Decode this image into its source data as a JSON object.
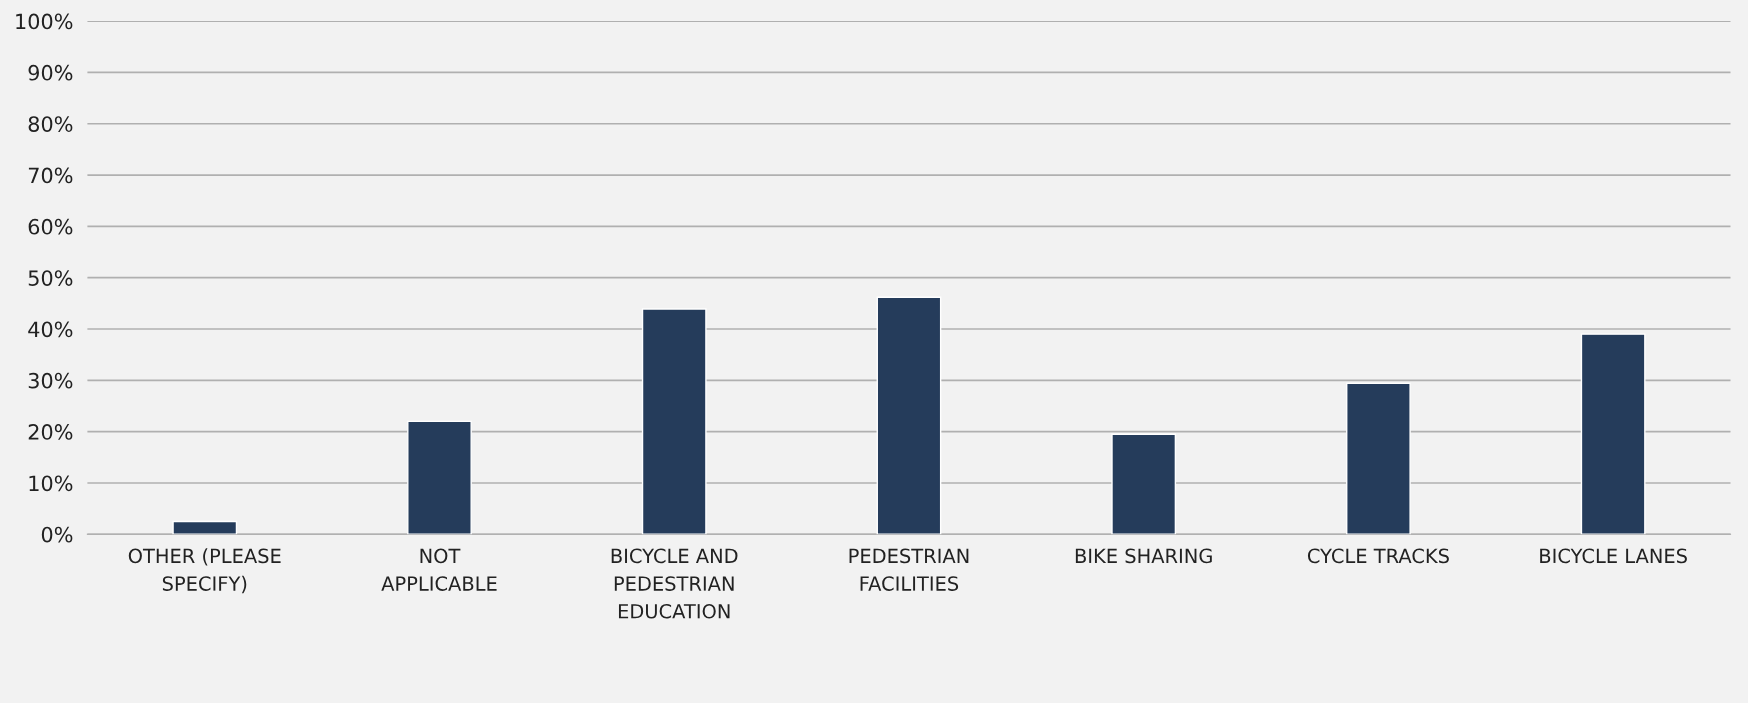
{
  "chart_data": {
    "type": "bar",
    "categories": [
      "OTHER (PLEASE\nSPECIFY)",
      "NOT\nAPPLICABLE",
      "BICYCLE AND\nPEDESTRIAN\nEDUCATION",
      "PEDESTRIAN\nFACILITIES",
      "BIKE SHARING",
      "CYCLE TRACKS",
      "BICYCLE LANES"
    ],
    "values": [
      2.5,
      22.0,
      43.9,
      46.2,
      19.5,
      29.4,
      39.0
    ],
    "color": "#253c5b",
    "ylim": [
      0,
      100
    ],
    "yticks": [
      {
        "value": 0,
        "label": "0%"
      },
      {
        "value": 10,
        "label": "10%"
      },
      {
        "value": 20,
        "label": "20%"
      },
      {
        "value": 30,
        "label": "30%"
      },
      {
        "value": 40,
        "label": "40%"
      },
      {
        "value": 50,
        "label": "50%"
      },
      {
        "value": 60,
        "label": "60%"
      },
      {
        "value": 70,
        "label": "70%"
      },
      {
        "value": 80,
        "label": "80%"
      },
      {
        "value": 90,
        "label": "90%"
      },
      {
        "value": 100,
        "label": "100%"
      }
    ],
    "grid": "y"
  }
}
